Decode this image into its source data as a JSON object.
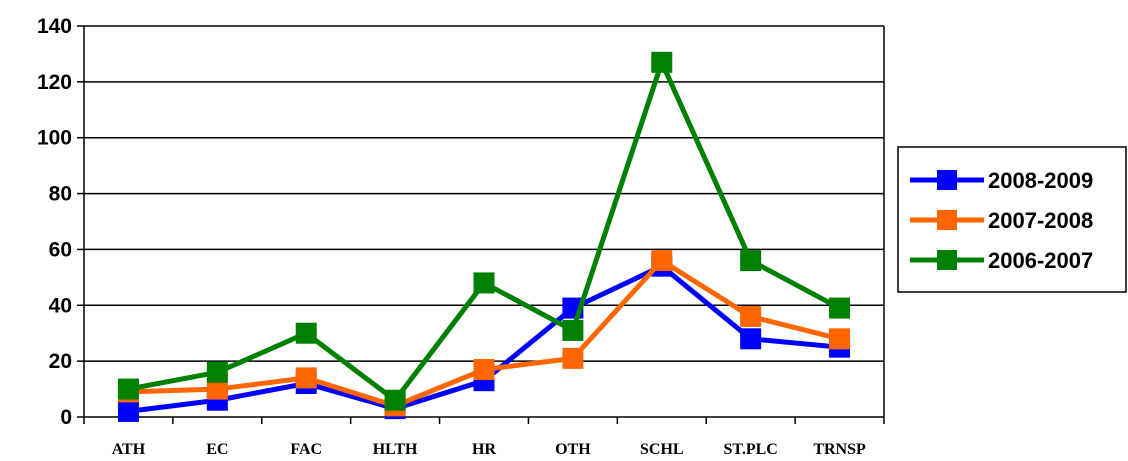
{
  "chart_data": {
    "type": "line",
    "title": "",
    "xlabel": "",
    "ylabel": "",
    "categories": [
      "ATH",
      "EC",
      "FAC",
      "HLTH",
      "HR",
      "OTH",
      "SCHL",
      "ST.PLC",
      "TRNSP"
    ],
    "ylim": [
      0,
      140
    ],
    "yticks": [
      "0",
      "20",
      "40",
      "60",
      "80",
      "100",
      "120",
      "140"
    ],
    "grid": true,
    "legend_position": "right",
    "series": [
      {
        "name": "2008-2009",
        "color": "#0000ff",
        "values": [
          2,
          6,
          12,
          3,
          13,
          39,
          54,
          28,
          25
        ]
      },
      {
        "name": "2007-2008",
        "color": "#ff6600",
        "values": [
          9,
          10,
          14,
          4,
          17,
          21,
          56,
          36,
          28
        ]
      },
      {
        "name": "2006-2007",
        "color": "#008000",
        "values": [
          10,
          16,
          30,
          6,
          48,
          31,
          127,
          56,
          39
        ]
      }
    ]
  }
}
